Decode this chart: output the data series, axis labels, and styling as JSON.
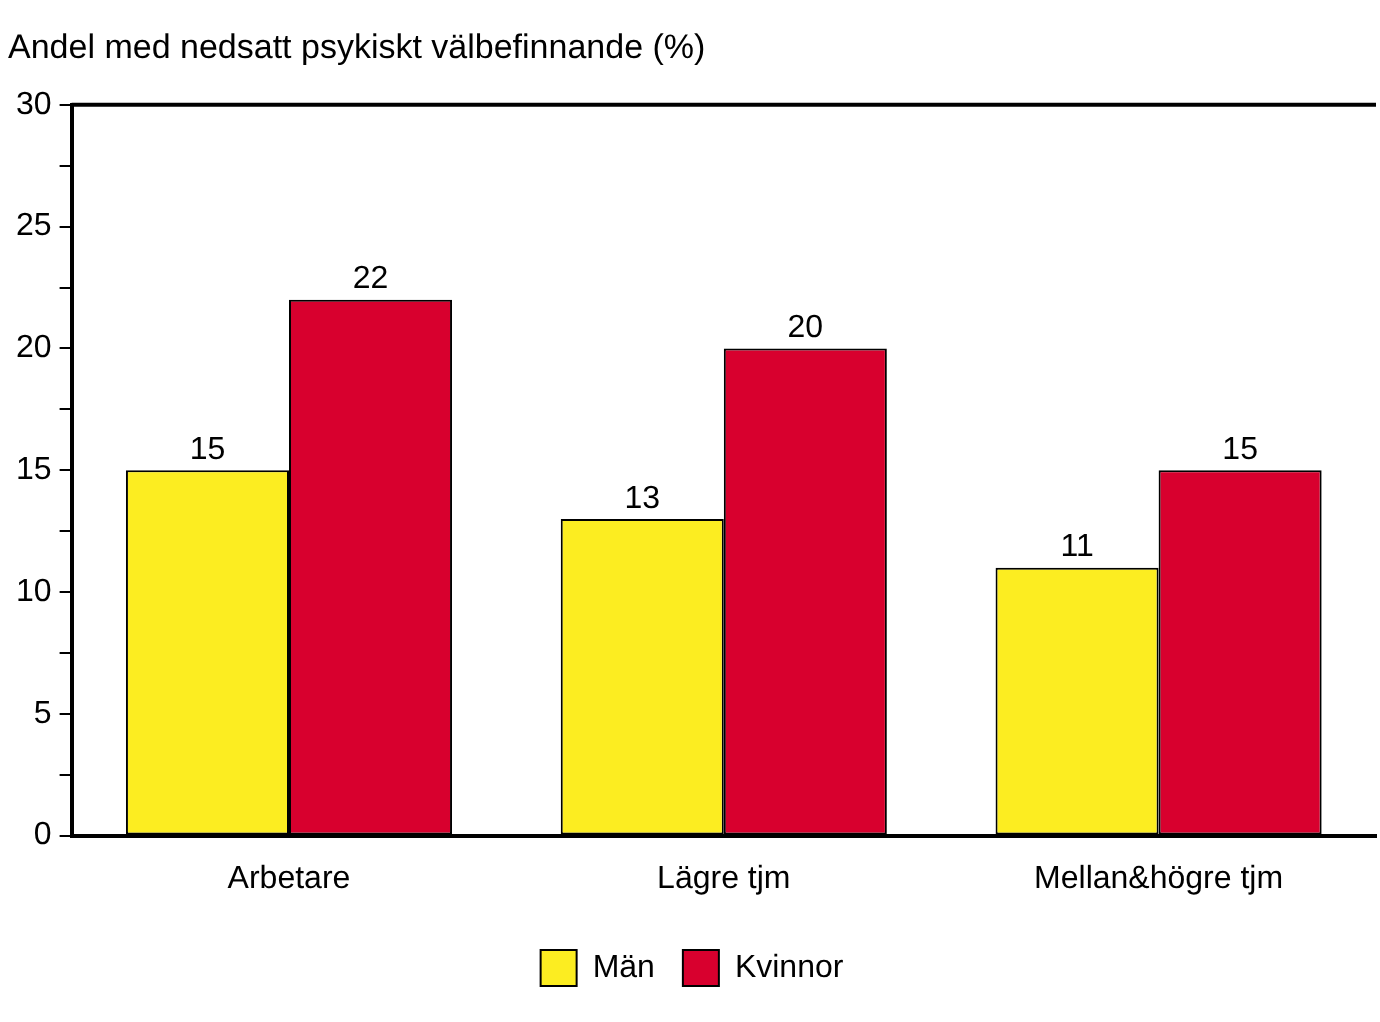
{
  "chart_data": {
    "type": "bar",
    "title": "Andel med nedsatt psykiskt välbefinnande (%)",
    "categories": [
      "Arbetare",
      "Lägre tjm",
      "Mellan&högre tjm"
    ],
    "series": [
      {
        "name": "Män",
        "color": "#fced21",
        "values": [
          15,
          13,
          11
        ]
      },
      {
        "name": "Kvinnor",
        "color": "#d8002e",
        "values": [
          22,
          20,
          15
        ]
      }
    ],
    "ylim": [
      0,
      30
    ],
    "yticks": [
      0,
      {
        "value": 2.5,
        "label": null
      },
      5,
      {
        "value": 7.5,
        "label": null
      },
      10,
      {
        "value": 12.5,
        "label": null
      },
      15,
      {
        "value": 17.5,
        "label": null
      },
      20,
      {
        "value": 22.5,
        "label": null
      },
      25,
      {
        "value": 27.5,
        "label": null
      },
      30
    ],
    "data_labels": true,
    "grid": false,
    "legend": "bottom"
  }
}
